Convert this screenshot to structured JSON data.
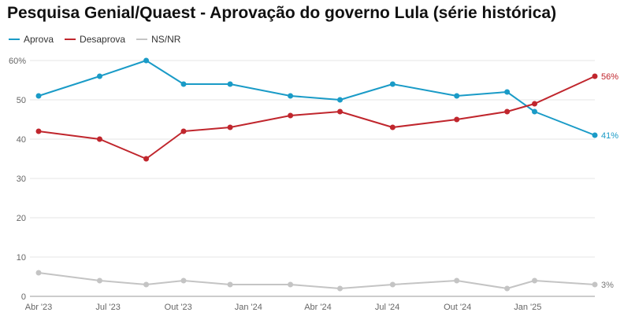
{
  "chart_data": {
    "type": "line",
    "title": "Pesquisa Genial/Quaest - Aprovação do governo Lula (série histórica)",
    "x_dates": [
      "2023-04-01",
      "2023-06-20",
      "2023-08-20",
      "2023-10-08",
      "2023-12-08",
      "2024-02-25",
      "2024-04-30",
      "2024-07-08",
      "2024-09-30",
      "2024-12-05",
      "2025-01-10",
      "2025-03-30"
    ],
    "x_ticks": [
      {
        "label": "Abr '23",
        "date": "2023-04-01"
      },
      {
        "label": "Jul '23",
        "date": "2023-07-01"
      },
      {
        "label": "Out '23",
        "date": "2023-10-01"
      },
      {
        "label": "Jan '24",
        "date": "2024-01-01"
      },
      {
        "label": "Abr '24",
        "date": "2024-04-01"
      },
      {
        "label": "Jul '24",
        "date": "2024-07-01"
      },
      {
        "label": "Out '24",
        "date": "2024-10-01"
      },
      {
        "label": "Jan '25",
        "date": "2025-01-01"
      }
    ],
    "y_ticks": [
      "0",
      "10",
      "20",
      "30",
      "40",
      "50",
      "60%"
    ],
    "ylim": [
      0,
      60
    ],
    "grid": true,
    "legend_position": "top-left",
    "series": [
      {
        "name": "Aprova",
        "color": "#1a9bc7",
        "values": [
          51,
          56,
          60,
          54,
          54,
          51,
          50,
          54,
          51,
          52,
          47,
          41
        ],
        "end_label": "41%"
      },
      {
        "name": "Desaprova",
        "color": "#c0262d",
        "values": [
          42,
          40,
          35,
          42,
          43,
          46,
          47,
          43,
          45,
          47,
          49,
          56
        ],
        "end_label": "56%"
      },
      {
        "name": "NS/NR",
        "color": "#c4c4c4",
        "values": [
          6,
          4,
          3,
          4,
          3,
          3,
          2,
          3,
          4,
          2,
          4,
          3
        ],
        "end_label": "3%"
      }
    ]
  }
}
